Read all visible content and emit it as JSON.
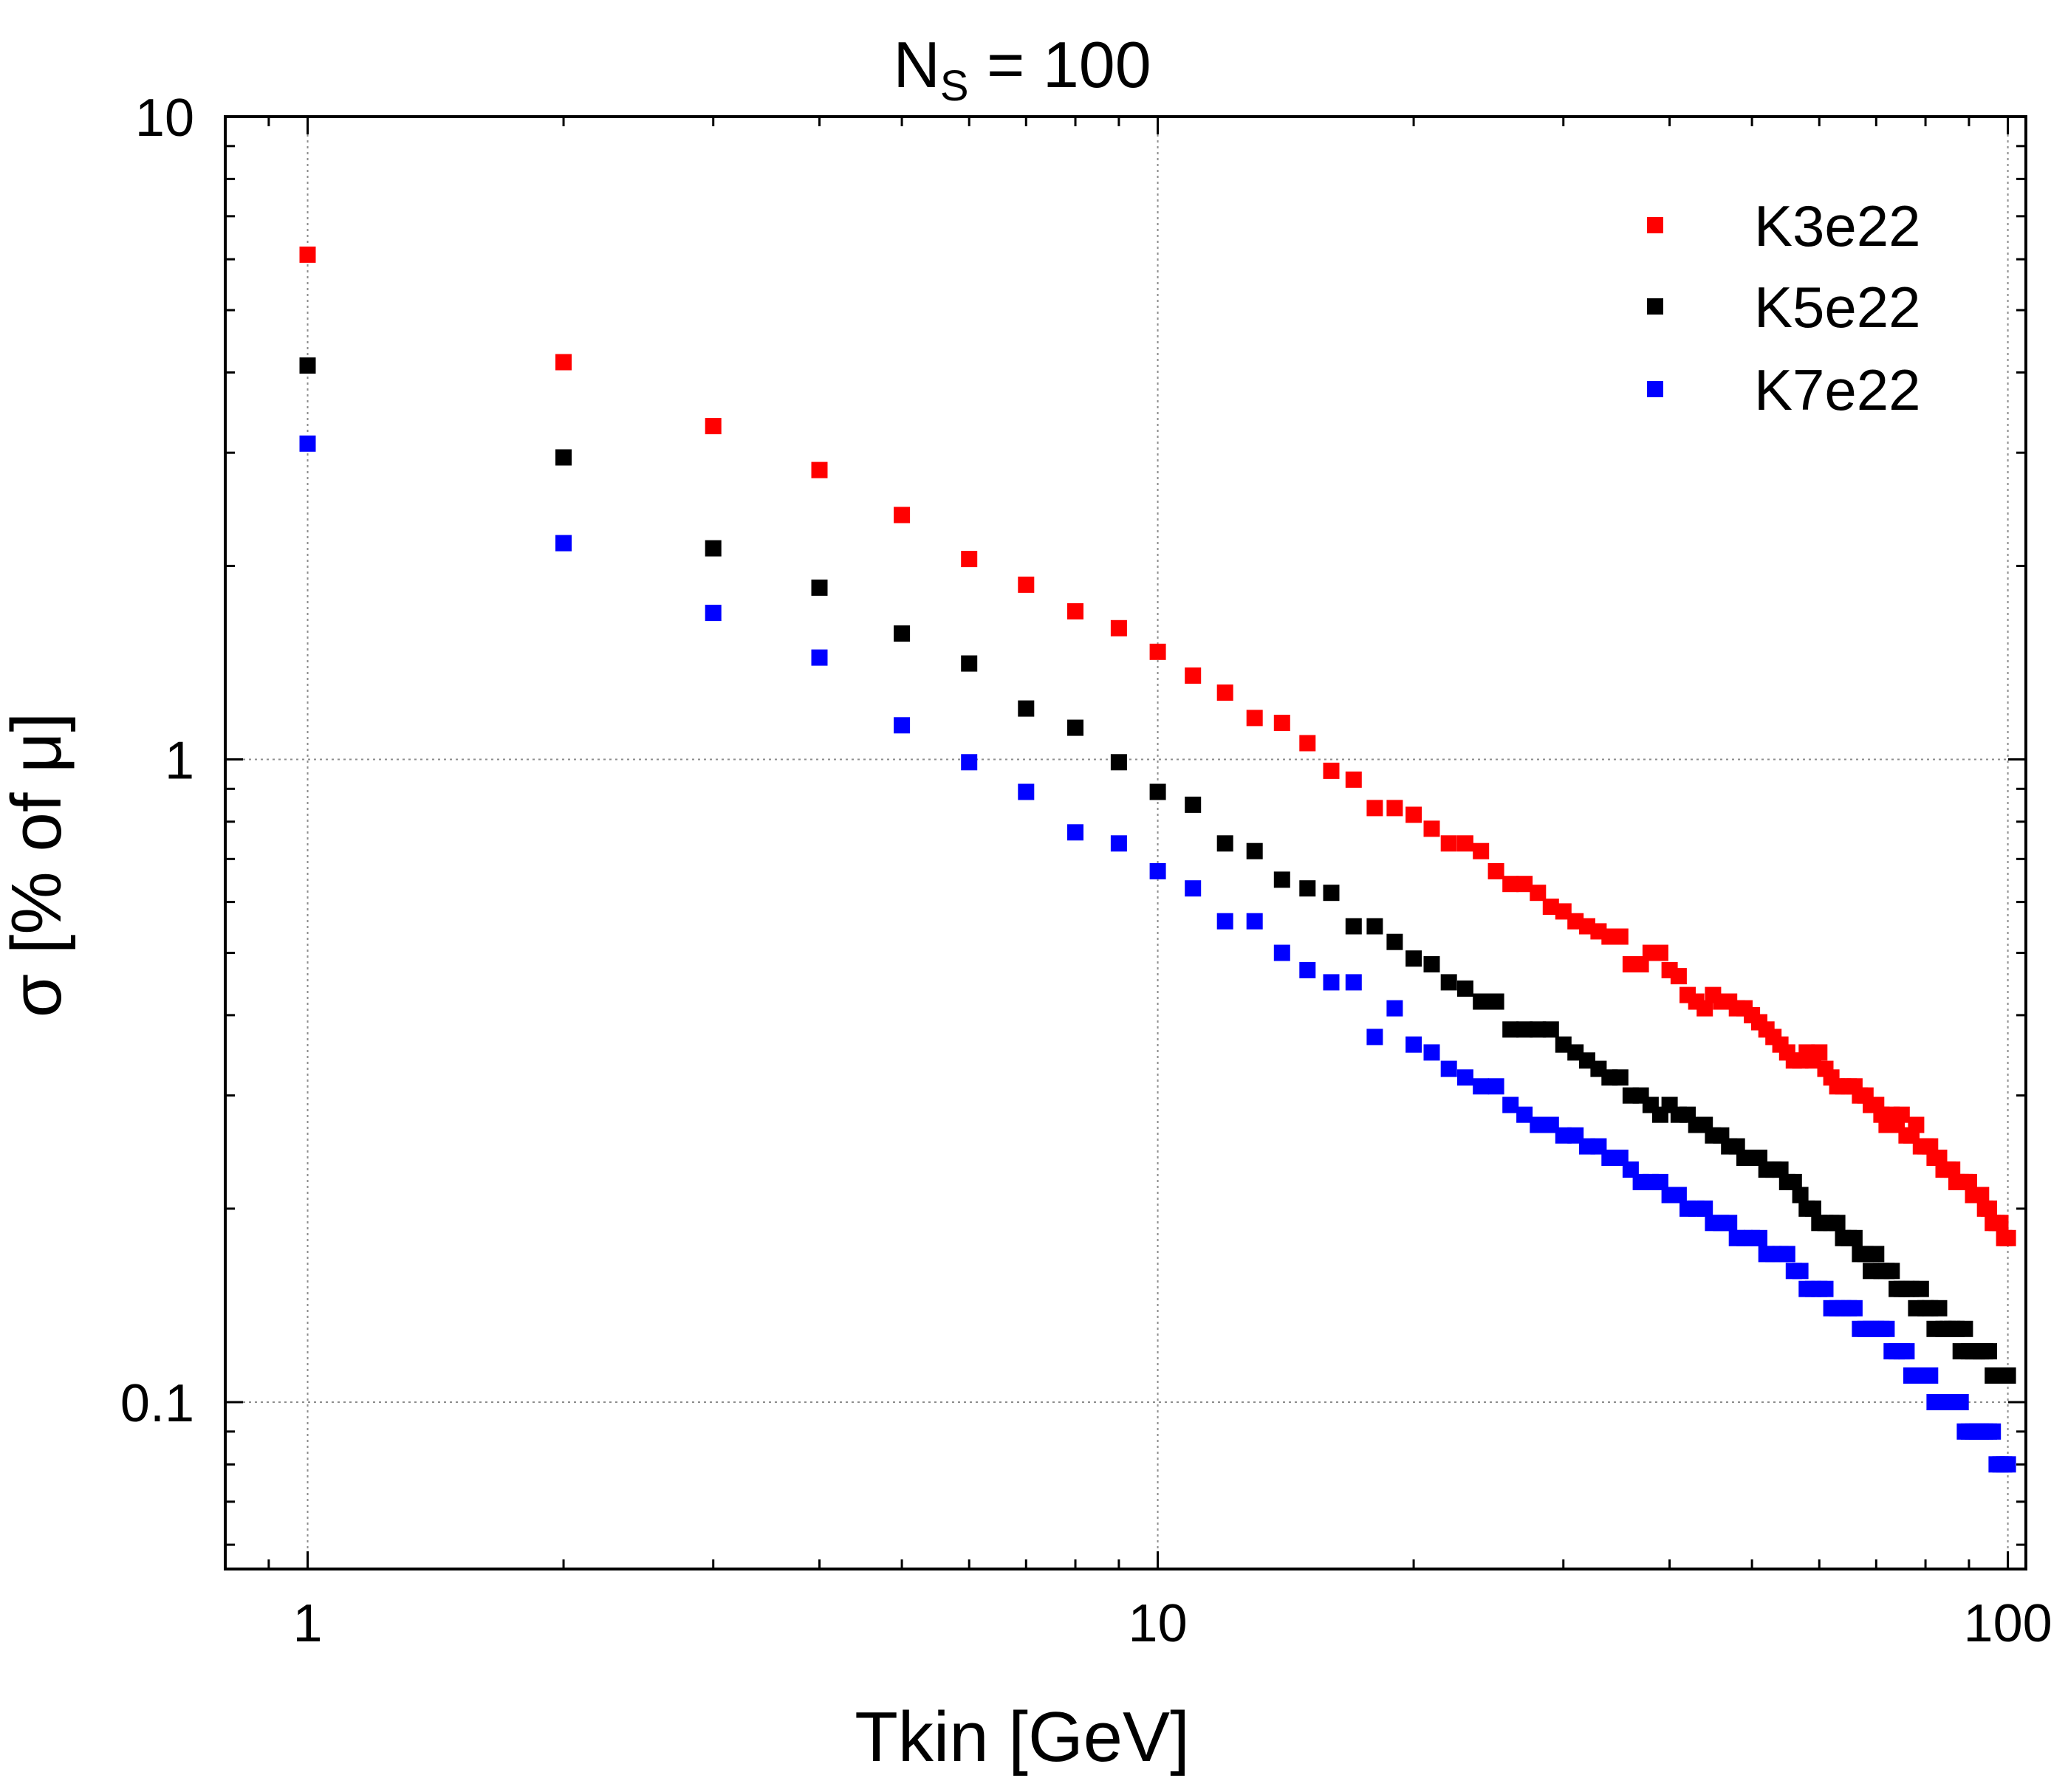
{
  "chart_data": {
    "type": "scatter",
    "title_main": "N",
    "title_sub": "S",
    "title_rest": " = 100",
    "xlabel": "Tkin [GeV]",
    "ylabel": "σ [% of μ]",
    "xscale": "log",
    "yscale": "log",
    "xlim": [
      0.8,
      105
    ],
    "ylim": [
      0.055,
      10
    ],
    "xticks": [
      {
        "value": 1,
        "label": "1"
      },
      {
        "value": 10,
        "label": "10"
      },
      {
        "value": 100,
        "label": "100"
      }
    ],
    "yticks": [
      {
        "value": 0.1,
        "label": "0.1"
      },
      {
        "value": 1,
        "label": "1"
      },
      {
        "value": 10,
        "label": "10"
      }
    ],
    "grid": true,
    "legend_position": "top-right",
    "series": [
      {
        "name": "K3e22",
        "color": "#ff0000",
        "x": [
          1,
          2,
          3,
          4,
          5,
          6,
          7,
          8,
          9,
          10,
          11,
          12,
          13,
          14,
          15,
          16,
          17,
          18,
          19,
          20,
          21,
          22,
          23,
          24,
          25,
          26,
          27,
          28,
          29,
          30,
          31,
          32,
          33,
          34,
          35,
          36,
          37,
          38,
          39,
          40,
          41,
          42,
          43,
          44,
          45,
          46,
          47,
          48,
          49,
          50,
          51,
          52,
          53,
          54,
          55,
          56,
          57,
          58,
          59,
          60,
          61,
          62,
          63,
          64,
          65,
          66,
          67,
          68,
          69,
          70,
          71,
          72,
          73,
          74,
          75,
          76,
          77,
          78,
          79,
          80,
          81,
          82,
          83,
          84,
          85,
          86,
          87,
          88,
          89,
          90,
          91,
          92,
          93,
          94,
          95,
          96,
          97,
          98,
          99,
          100
        ],
        "y": [
          6.1,
          4.15,
          3.3,
          2.82,
          2.4,
          2.05,
          1.87,
          1.7,
          1.6,
          1.47,
          1.35,
          1.27,
          1.16,
          1.14,
          1.06,
          0.96,
          0.93,
          0.84,
          0.84,
          0.82,
          0.78,
          0.74,
          0.74,
          0.72,
          0.67,
          0.64,
          0.64,
          0.62,
          0.59,
          0.58,
          0.56,
          0.55,
          0.54,
          0.53,
          0.53,
          0.48,
          0.48,
          0.5,
          0.5,
          0.47,
          0.46,
          0.43,
          0.42,
          0.41,
          0.43,
          0.42,
          0.42,
          0.41,
          0.41,
          0.4,
          0.39,
          0.38,
          0.37,
          0.36,
          0.35,
          0.34,
          0.34,
          0.35,
          0.34,
          0.35,
          0.33,
          0.32,
          0.31,
          0.31,
          0.31,
          0.31,
          0.3,
          0.3,
          0.29,
          0.29,
          0.28,
          0.27,
          0.28,
          0.27,
          0.28,
          0.26,
          0.26,
          0.27,
          0.25,
          0.25,
          0.25,
          0.24,
          0.24,
          0.23,
          0.23,
          0.23,
          0.22,
          0.22,
          0.22,
          0.22,
          0.21,
          0.21,
          0.21,
          0.2,
          0.2,
          0.19,
          0.19,
          0.19,
          0.18,
          0.18
        ]
      },
      {
        "name": "K5e22",
        "color": "#000000",
        "x": [
          1,
          2,
          3,
          4,
          5,
          6,
          7,
          8,
          9,
          10,
          11,
          12,
          13,
          14,
          15,
          16,
          17,
          18,
          19,
          20,
          21,
          22,
          23,
          24,
          25,
          26,
          27,
          28,
          29,
          30,
          31,
          32,
          33,
          34,
          35,
          36,
          37,
          38,
          39,
          40,
          41,
          42,
          43,
          44,
          45,
          46,
          47,
          48,
          49,
          50,
          51,
          52,
          53,
          54,
          55,
          56,
          57,
          58,
          59,
          60,
          61,
          62,
          63,
          64,
          65,
          66,
          67,
          68,
          69,
          70,
          71,
          72,
          73,
          74,
          75,
          76,
          77,
          78,
          79,
          80,
          81,
          82,
          83,
          84,
          85,
          86,
          87,
          88,
          89,
          90,
          91,
          92,
          93,
          94,
          95,
          96,
          97,
          98,
          99,
          100
        ],
        "y": [
          4.1,
          2.95,
          2.13,
          1.85,
          1.57,
          1.41,
          1.2,
          1.12,
          0.99,
          0.89,
          0.85,
          0.74,
          0.72,
          0.65,
          0.63,
          0.62,
          0.55,
          0.55,
          0.52,
          0.49,
          0.48,
          0.45,
          0.44,
          0.42,
          0.42,
          0.38,
          0.38,
          0.38,
          0.38,
          0.36,
          0.35,
          0.34,
          0.33,
          0.32,
          0.32,
          0.3,
          0.3,
          0.29,
          0.28,
          0.29,
          0.28,
          0.28,
          0.27,
          0.27,
          0.26,
          0.26,
          0.25,
          0.25,
          0.24,
          0.24,
          0.24,
          0.23,
          0.23,
          0.23,
          0.22,
          0.22,
          0.21,
          0.2,
          0.2,
          0.19,
          0.19,
          0.19,
          0.19,
          0.18,
          0.18,
          0.18,
          0.17,
          0.17,
          0.16,
          0.17,
          0.16,
          0.16,
          0.16,
          0.15,
          0.15,
          0.15,
          0.15,
          0.14,
          0.15,
          0.14,
          0.14,
          0.13,
          0.14,
          0.13,
          0.13,
          0.13,
          0.13,
          0.12,
          0.13,
          0.12,
          0.12,
          0.12,
          0.12,
          0.12,
          0.12,
          0.11,
          0.11,
          0.11,
          0.11,
          0.11
        ]
      },
      {
        "name": "K7e22",
        "color": "#0000ff",
        "x": [
          1,
          2,
          3,
          4,
          5,
          6,
          7,
          8,
          9,
          10,
          11,
          12,
          13,
          14,
          15,
          16,
          17,
          18,
          19,
          20,
          21,
          22,
          23,
          24,
          25,
          26,
          27,
          28,
          29,
          30,
          31,
          32,
          33,
          34,
          35,
          36,
          37,
          38,
          39,
          40,
          41,
          42,
          43,
          44,
          45,
          46,
          47,
          48,
          49,
          50,
          51,
          52,
          53,
          54,
          55,
          56,
          57,
          58,
          59,
          60,
          61,
          62,
          63,
          64,
          65,
          66,
          67,
          68,
          69,
          70,
          71,
          72,
          73,
          74,
          75,
          76,
          77,
          78,
          79,
          80,
          81,
          82,
          83,
          84,
          85,
          86,
          87,
          88,
          89,
          90,
          91,
          92,
          93,
          94,
          95,
          96,
          97,
          98,
          99,
          100
        ],
        "y": [
          3.1,
          2.17,
          1.69,
          1.44,
          1.13,
          0.99,
          0.89,
          0.77,
          0.74,
          0.67,
          0.63,
          0.56,
          0.56,
          0.5,
          0.47,
          0.45,
          0.45,
          0.37,
          0.41,
          0.36,
          0.35,
          0.33,
          0.32,
          0.31,
          0.31,
          0.29,
          0.28,
          0.27,
          0.27,
          0.26,
          0.26,
          0.25,
          0.25,
          0.24,
          0.24,
          0.23,
          0.22,
          0.22,
          0.22,
          0.21,
          0.21,
          0.2,
          0.2,
          0.2,
          0.19,
          0.19,
          0.19,
          0.18,
          0.18,
          0.18,
          0.18,
          0.17,
          0.17,
          0.17,
          0.17,
          0.16,
          0.16,
          0.15,
          0.15,
          0.15,
          0.15,
          0.14,
          0.14,
          0.14,
          0.14,
          0.14,
          0.13,
          0.13,
          0.13,
          0.13,
          0.13,
          0.13,
          0.12,
          0.12,
          0.12,
          0.12,
          0.11,
          0.11,
          0.11,
          0.11,
          0.11,
          0.1,
          0.1,
          0.1,
          0.1,
          0.1,
          0.1,
          0.1,
          0.09,
          0.09,
          0.09,
          0.09,
          0.09,
          0.09,
          0.09,
          0.09,
          0.08,
          0.08,
          0.08,
          0.08
        ]
      }
    ]
  }
}
